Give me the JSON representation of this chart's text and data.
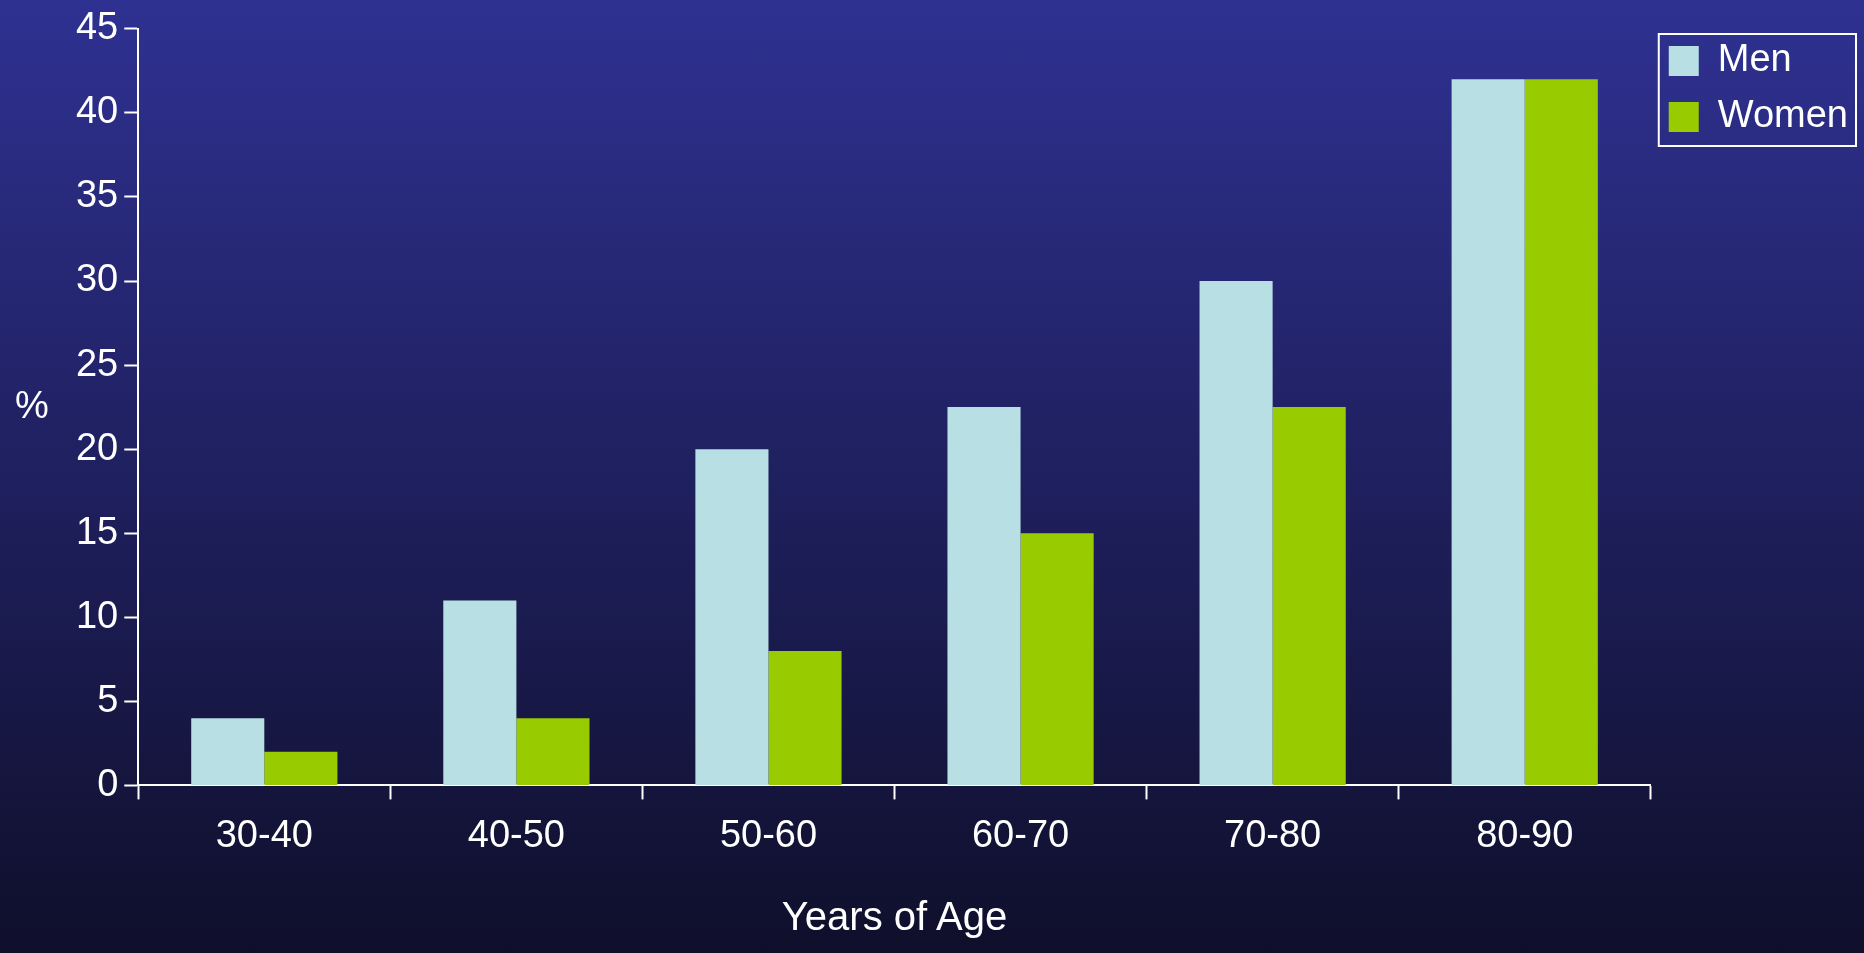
{
  "chart_data": {
    "type": "bar",
    "xlabel": "Years of Age",
    "ylabel": "%",
    "categories": [
      "30-40",
      "40-50",
      "50-60",
      "60-70",
      "70-80",
      "80-90"
    ],
    "series": [
      {
        "name": "Men",
        "color": "#b8dfe3",
        "values": [
          4,
          11,
          20,
          22.5,
          30,
          42
        ]
      },
      {
        "name": "Women",
        "color": "#99cc00",
        "values": [
          2,
          4,
          8,
          15,
          22.5,
          42
        ]
      }
    ],
    "ylim": [
      0,
      45
    ],
    "yticks": [
      0,
      5,
      10,
      15,
      20,
      25,
      30,
      35,
      40,
      45
    ],
    "grid": false,
    "legend": "top right"
  }
}
